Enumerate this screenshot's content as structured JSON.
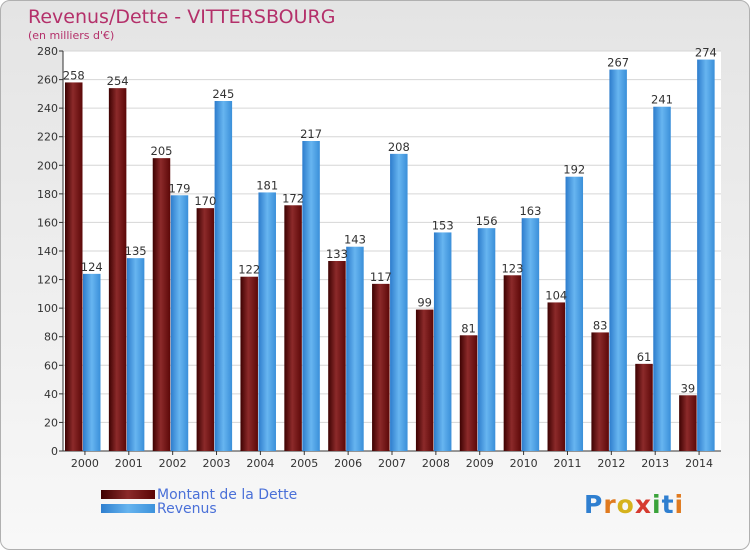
{
  "chart_data": {
    "type": "bar",
    "title": "Revenus/Dette - VITTERSBOURG",
    "subtitle": "(en milliers d'€)",
    "categories": [
      "2000",
      "2001",
      "2002",
      "2003",
      "2004",
      "2005",
      "2006",
      "2007",
      "2008",
      "2009",
      "2010",
      "2011",
      "2012",
      "2013",
      "2014"
    ],
    "series": [
      {
        "name": "Montant de la Dette",
        "color": "#7a1a1a",
        "values": [
          258,
          254,
          205,
          170,
          122,
          172,
          133,
          117,
          99,
          81,
          123,
          104,
          83,
          61,
          39
        ]
      },
      {
        "name": "Revenus",
        "color": "#4aa3e8",
        "values": [
          124,
          135,
          179,
          245,
          181,
          217,
          143,
          208,
          153,
          156,
          163,
          192,
          267,
          241,
          274
        ]
      }
    ],
    "ylim": [
      0,
      280
    ],
    "yticks": [
      0,
      20,
      40,
      60,
      80,
      100,
      120,
      140,
      160,
      180,
      200,
      220,
      240,
      260,
      280
    ],
    "grid": true,
    "legend": "bottom-left"
  },
  "legend": {
    "dette_label": "Montant de la Dette",
    "revenus_label": "Revenus"
  },
  "logo": {
    "text": "Proxiti"
  }
}
